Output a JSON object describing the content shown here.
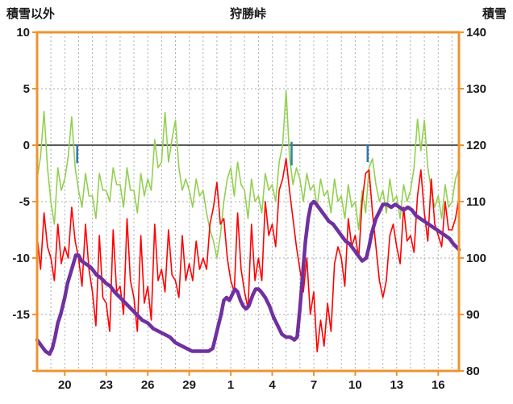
{
  "header": {
    "left_axis_title": "積雪以外",
    "chart_title": "狩勝峠",
    "right_axis_title": "積雪"
  },
  "chart_data": {
    "type": "line",
    "title": "狩勝峠",
    "x_axis": {
      "domain": [
        0,
        30.5
      ],
      "tick_positions": [
        2,
        5,
        8,
        11,
        14,
        17,
        20,
        23,
        26,
        29
      ],
      "tick_labels": [
        "20",
        "23",
        "26",
        "29",
        "1",
        "4",
        "7",
        "10",
        "13",
        "16"
      ],
      "daily_gridlines": true
    },
    "left_axis": {
      "title": "積雪以外",
      "max": 10,
      "min": -20,
      "tick_step": 5,
      "tick_values": [
        10,
        5,
        0,
        -5,
        -10,
        -15
      ]
    },
    "right_axis": {
      "title": "積雪",
      "max": 140,
      "min": 80,
      "tick_step": 10,
      "tick_values": [
        140,
        130,
        120,
        110,
        100,
        90,
        80
      ]
    },
    "series": [
      {
        "name": "green-line",
        "axis": "left",
        "color": "#92D050",
        "width": 1.6,
        "x_start": 0,
        "x_step": 0.25,
        "values": [
          -3,
          -1,
          3,
          -2,
          -5,
          -7,
          -2,
          -4,
          -3,
          -1,
          2.5,
          -2,
          -4,
          -5.5,
          -2.5,
          -4.5,
          -4.5,
          -6.5,
          -2.5,
          -4,
          -4,
          -5,
          -2,
          -3.5,
          -3.5,
          -5.5,
          -2,
          -4,
          -4,
          -6,
          -2.5,
          -4.5,
          -3,
          -4,
          0.5,
          -2,
          -1.5,
          2.9,
          -1.5,
          0.5,
          2.2,
          -2,
          -4,
          -3,
          -4,
          -5.5,
          -3,
          -4.5,
          -4,
          -6,
          -7.5,
          -8.5,
          -10,
          -8,
          -5,
          -3,
          -2,
          -4.5,
          -1.5,
          -3.5,
          -4,
          -6.5,
          -3,
          -5,
          -4.5,
          -6,
          -2.5,
          -4,
          -3.5,
          -5,
          -1.5,
          0,
          4.8,
          -1,
          -3.5,
          -2,
          -3,
          -5,
          -2.5,
          -4,
          -3.5,
          -5.5,
          -3,
          -4.5,
          -4,
          -6,
          -3,
          -5,
          -4.5,
          -6.5,
          -3.5,
          -5.5,
          -5,
          -7.5,
          -4,
          -6,
          -2,
          -1.2,
          -3.5,
          -5,
          -4,
          -6,
          -3,
          -5,
          -4.5,
          -6.5,
          -3.5,
          -5,
          -4,
          -2,
          2.3,
          -0.5,
          2.2,
          -2,
          -4,
          -5.5,
          -4.5,
          -6.5,
          -3.5,
          -5.5,
          -5,
          -3,
          -2
        ]
      },
      {
        "name": "red-line",
        "axis": "left",
        "color": "#FF0000",
        "width": 1.6,
        "x_start": 0,
        "x_step": 0.25,
        "values": [
          -8,
          -11,
          -6,
          -9,
          -10,
          -12,
          -7,
          -10.5,
          -9,
          -10,
          -5.5,
          -8.5,
          -10,
          -12.5,
          -7,
          -11,
          -13,
          -16,
          -8,
          -13.5,
          -14,
          -16.5,
          -7.5,
          -13,
          -12.5,
          -15,
          -6.5,
          -12,
          -13.5,
          -16.5,
          -8,
          -14,
          -12.5,
          -15.5,
          -7,
          -12,
          -11,
          -13,
          -7.5,
          -11.5,
          -12,
          -13.5,
          -8,
          -12,
          -10.5,
          -12,
          -8.5,
          -11,
          -10,
          -11,
          -7,
          -5.5,
          -3.3,
          -7,
          -6.5,
          -10,
          -12,
          -13,
          -6,
          -11,
          -13,
          -14.5,
          -7,
          -12,
          -10,
          -12,
          -5,
          -8,
          -7,
          -9,
          -4,
          -3,
          -1.2,
          -4,
          -6.5,
          -9,
          -11,
          -13,
          -10,
          -15,
          -13,
          -18.3,
          -15.5,
          -17.8,
          -14,
          -16.5,
          -10.5,
          -9,
          -10,
          -12.5,
          -6.5,
          -9,
          -8,
          -10,
          -5,
          -2.5,
          -2.2,
          -6,
          -9,
          -12,
          -13.5,
          -12,
          -8,
          -7,
          -9,
          -10.5,
          -5.5,
          -8.5,
          -8,
          -9.5,
          -4.5,
          -2.2,
          -6,
          -8.5,
          -3,
          -7,
          -8,
          -9,
          -5,
          -7.5,
          -7.5,
          -6.5,
          -4.6
        ]
      },
      {
        "name": "purple-line",
        "axis": "right",
        "color": "#7030A0",
        "width": 4.5,
        "x": [
          0,
          0.3,
          0.6,
          0.9,
          1.1,
          1.3,
          1.5,
          1.7,
          2.0,
          2.2,
          2.5,
          2.8,
          3.0,
          3.2,
          3.5,
          3.8,
          4.0,
          4.3,
          4.6,
          5.0,
          5.3,
          5.6,
          6.0,
          6.4,
          6.8,
          7.2,
          7.6,
          8.0,
          8.4,
          8.8,
          9.2,
          9.6,
          10.0,
          10.4,
          10.8,
          11.2,
          11.6,
          12.0,
          12.4,
          12.7,
          12.9,
          13.1,
          13.3,
          13.5,
          13.7,
          13.9,
          14.1,
          14.3,
          14.5,
          14.7,
          14.9,
          15.1,
          15.3,
          15.6,
          15.8,
          16.0,
          16.2,
          16.5,
          16.8,
          17.1,
          17.4,
          17.7,
          18.0,
          18.3,
          18.6,
          18.8,
          19.0,
          19.2,
          19.4,
          19.6,
          19.8,
          20.0,
          20.2,
          20.5,
          20.8,
          21.1,
          21.4,
          21.7,
          22.0,
          22.3,
          22.6,
          22.9,
          23.2,
          23.5,
          23.8,
          24.0,
          24.2,
          24.5,
          24.8,
          25.0,
          25.3,
          25.6,
          25.9,
          26.2,
          26.5,
          26.8,
          27.1,
          27.4,
          27.7,
          28.0,
          28.3,
          28.6,
          28.9,
          29.2,
          29.5,
          29.8,
          30.1,
          30.5
        ],
        "y": [
          85.5,
          84.5,
          83.5,
          83,
          84,
          86,
          88.5,
          90,
          93,
          95.5,
          98,
          100.5,
          100.5,
          99.5,
          99,
          98.5,
          98,
          97,
          96.5,
          95.5,
          95,
          94,
          93,
          92,
          91,
          90,
          89,
          88.5,
          87.5,
          87,
          86.5,
          86,
          85,
          84.5,
          84,
          83.5,
          83.5,
          83.5,
          83.5,
          84,
          86,
          88,
          90,
          92.5,
          93,
          92.5,
          93.5,
          94.5,
          94,
          92.5,
          91.5,
          91,
          91.5,
          93.5,
          94.5,
          94.5,
          94,
          93,
          91.5,
          89.5,
          88,
          86.5,
          86,
          86,
          85.5,
          86,
          91,
          97,
          103,
          107,
          109.5,
          110,
          109.5,
          108.5,
          107.5,
          106.5,
          106,
          105,
          104,
          103,
          102.5,
          101.5,
          100.5,
          99.5,
          100,
          102,
          104.5,
          107,
          108.5,
          109.5,
          109.5,
          109,
          109.5,
          109,
          108.5,
          109,
          108.5,
          107.5,
          107,
          106.5,
          106,
          105.5,
          105,
          104.5,
          104,
          103.5,
          102.5,
          101.5
        ]
      }
    ],
    "event_ticks": [
      {
        "x": 2.9,
        "from": 0,
        "to": -1.6,
        "color": "#2E75B6"
      },
      {
        "x": 18.4,
        "from": 0.3,
        "to": -1.8,
        "color": "#31849B"
      },
      {
        "x": 23.9,
        "from": 0,
        "to": -1.5,
        "color": "#2E75B6"
      }
    ],
    "styles": {
      "border_color": "#ED9431",
      "grid_color": "#ABABAB",
      "zero_line_color": "#595959",
      "text_color": "#1A1A1A",
      "background": "#FFFFFF"
    }
  }
}
